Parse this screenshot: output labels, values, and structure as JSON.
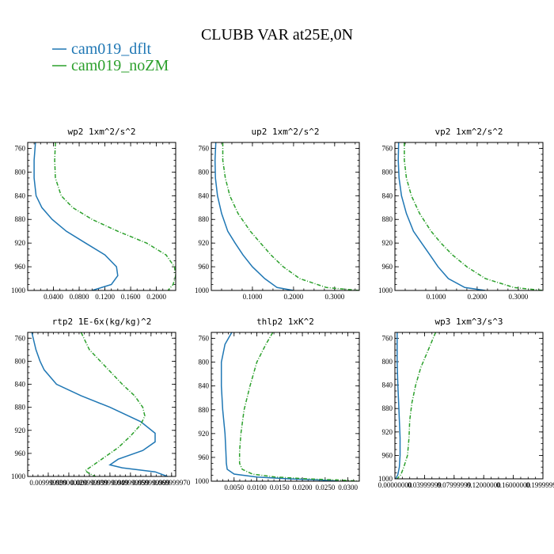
{
  "title": "CLUBB VAR at25E,0N",
  "colors": {
    "cam019_dflt": "#1f77b4",
    "cam019_noZM": "#2ca02c"
  },
  "legend": [
    {
      "name": "cam019_dflt",
      "color": "#1f77b4",
      "dash": "solid"
    },
    {
      "name": "cam019_noZM",
      "color": "#2ca02c",
      "dash": "dashdot"
    }
  ],
  "chart_data": [
    {
      "type": "line",
      "title": "wp2   1xm^2/s^2",
      "ylim": [
        1000,
        750
      ],
      "yticks": [
        760,
        800,
        840,
        880,
        920,
        960,
        1000
      ],
      "xlim": [
        0.0,
        0.23
      ],
      "xticks": [
        0.04,
        0.08,
        0.12,
        0.16,
        0.2
      ],
      "xtick_labels": [
        "0.0400",
        "0.0800",
        "0.1200",
        "0.1600",
        "0.2000"
      ],
      "series": [
        {
          "name": "cam019_dflt",
          "x": [
            0.012,
            0.01,
            0.01,
            0.013,
            0.022,
            0.038,
            0.06,
            0.09,
            0.12,
            0.138,
            0.14,
            0.13,
            0.1
          ],
          "y": [
            750,
            780,
            810,
            840,
            860,
            880,
            900,
            920,
            940,
            960,
            975,
            990,
            1000
          ]
        },
        {
          "name": "cam019_noZM",
          "x": [
            0.043,
            0.042,
            0.043,
            0.052,
            0.07,
            0.1,
            0.14,
            0.185,
            0.215,
            0.228,
            0.23,
            0.226,
            0.218
          ],
          "y": [
            750,
            780,
            810,
            840,
            860,
            880,
            900,
            920,
            940,
            960,
            975,
            990,
            1000
          ]
        }
      ]
    },
    {
      "type": "line",
      "title": "up2   1xm^2/s^2",
      "ylim": [
        1000,
        750
      ],
      "yticks": [
        760,
        800,
        840,
        880,
        920,
        960,
        1000
      ],
      "xlim": [
        0.0,
        0.36
      ],
      "xticks": [
        0.1,
        0.2,
        0.3
      ],
      "xtick_labels": [
        "0.1000",
        "0.2000",
        "0.3000"
      ],
      "series": [
        {
          "name": "cam019_dflt",
          "x": [
            0.011,
            0.009,
            0.01,
            0.015,
            0.025,
            0.04,
            0.058,
            0.077,
            0.1,
            0.13,
            0.16,
            0.2
          ],
          "y": [
            750,
            780,
            810,
            840,
            870,
            900,
            920,
            940,
            960,
            980,
            995,
            1000
          ]
        },
        {
          "name": "cam019_noZM",
          "x": [
            0.028,
            0.028,
            0.034,
            0.045,
            0.065,
            0.095,
            0.12,
            0.145,
            0.175,
            0.215,
            0.28,
            0.36
          ],
          "y": [
            750,
            780,
            810,
            840,
            870,
            900,
            920,
            940,
            960,
            980,
            995,
            1000
          ]
        }
      ]
    },
    {
      "type": "line",
      "title": "vp2   1xm^2/s^2",
      "ylim": [
        1000,
        750
      ],
      "yticks": [
        760,
        800,
        840,
        880,
        920,
        960,
        1000
      ],
      "xlim": [
        0.0,
        0.36
      ],
      "xticks": [
        0.1,
        0.2,
        0.3
      ],
      "xtick_labels": [
        "0.1000",
        "0.2000",
        "0.3000"
      ],
      "series": [
        {
          "name": "cam019_dflt",
          "x": [
            0.009,
            0.008,
            0.01,
            0.016,
            0.028,
            0.045,
            0.065,
            0.085,
            0.105,
            0.13,
            0.17,
            0.22
          ],
          "y": [
            750,
            780,
            810,
            840,
            870,
            900,
            920,
            940,
            960,
            980,
            995,
            1000
          ]
        },
        {
          "name": "cam019_noZM",
          "x": [
            0.023,
            0.023,
            0.028,
            0.04,
            0.06,
            0.088,
            0.112,
            0.14,
            0.175,
            0.22,
            0.29,
            0.36
          ],
          "y": [
            750,
            780,
            810,
            840,
            870,
            900,
            920,
            940,
            960,
            980,
            995,
            1000
          ]
        }
      ]
    },
    {
      "type": "line",
      "title": "rtp2   1E-6x(kg/kg)^2",
      "ylim": [
        1000,
        750
      ],
      "yticks": [
        760,
        800,
        840,
        880,
        920,
        960,
        1000
      ],
      "xlim": [
        0.0,
        0.072
      ],
      "xticks": [
        0.01,
        0.02,
        0.03,
        0.04,
        0.05,
        0.06,
        0.07
      ],
      "xtick_labels": [
        "0.009999999",
        "0.020000000",
        "0.029999999",
        "0.039999999",
        "0.049999999",
        "0.059999999",
        "0.069999970"
      ],
      "series": [
        {
          "name": "cam019_dflt",
          "x": [
            0.002,
            0.004,
            0.006,
            0.008,
            0.014,
            0.026,
            0.04,
            0.055,
            0.062,
            0.062,
            0.056,
            0.044,
            0.04,
            0.046,
            0.062,
            0.068
          ],
          "y": [
            750,
            780,
            800,
            815,
            840,
            860,
            880,
            905,
            925,
            940,
            955,
            970,
            980,
            985,
            992,
            1000
          ]
        },
        {
          "name": "cam019_noZM",
          "x": [
            0.026,
            0.03,
            0.038,
            0.046,
            0.052,
            0.056,
            0.057,
            0.055,
            0.05,
            0.044,
            0.036,
            0.03,
            0.028,
            0.03,
            0.033
          ],
          "y": [
            750,
            780,
            810,
            840,
            860,
            880,
            895,
            910,
            930,
            950,
            970,
            985,
            990,
            995,
            1000
          ]
        }
      ]
    },
    {
      "type": "line",
      "title": "thlp2   1xK^2",
      "ylim": [
        1000,
        750
      ],
      "yticks": [
        760,
        800,
        840,
        880,
        920,
        960,
        1000
      ],
      "xlim": [
        0.0,
        0.0325
      ],
      "xticks": [
        0.005,
        0.01,
        0.015,
        0.02,
        0.025,
        0.03
      ],
      "xtick_labels": [
        "0.0050",
        "0.0100",
        "0.0150",
        "0.0200",
        "0.0250",
        "0.0300"
      ],
      "series": [
        {
          "name": "cam019_dflt",
          "x": [
            0.0045,
            0.003,
            0.0022,
            0.0022,
            0.0025,
            0.003,
            0.0032,
            0.0033,
            0.0035,
            0.005,
            0.01,
            0.017,
            0.024,
            0.028
          ],
          "y": [
            750,
            770,
            800,
            840,
            880,
            920,
            950,
            970,
            980,
            988,
            993,
            996,
            998,
            1000
          ]
        },
        {
          "name": "cam019_noZM",
          "x": [
            0.0135,
            0.012,
            0.01,
            0.0085,
            0.0072,
            0.0065,
            0.0062,
            0.0062,
            0.0068,
            0.009,
            0.014,
            0.021,
            0.028,
            0.0325
          ],
          "y": [
            750,
            770,
            800,
            840,
            880,
            920,
            950,
            970,
            980,
            988,
            993,
            996,
            998,
            1000
          ]
        }
      ]
    },
    {
      "type": "line",
      "title": "wp3   1xm^3/s^3",
      "ylim": [
        1000,
        750
      ],
      "yticks": [
        760,
        800,
        840,
        880,
        920,
        960,
        1000
      ],
      "xlim": [
        0.0,
        0.2
      ],
      "xticks": [
        0.0,
        0.04,
        0.08,
        0.12,
        0.16,
        0.2
      ],
      "xtick_labels": [
        "0.00000000",
        "0.03999999",
        "0.07999999",
        "0.12000000",
        "0.16000000",
        "0.19999999"
      ],
      "series": [
        {
          "name": "cam019_dflt",
          "x": [
            0.003,
            0.003,
            0.004,
            0.005,
            0.006,
            0.007,
            0.007,
            0.006,
            0.004,
            0.001
          ],
          "y": [
            750,
            800,
            840,
            870,
            900,
            930,
            960,
            980,
            993,
            1000
          ]
        },
        {
          "name": "cam019_noZM",
          "x": [
            0.055,
            0.045,
            0.035,
            0.028,
            0.023,
            0.02,
            0.019,
            0.017,
            0.012,
            0.008,
            0.003
          ],
          "y": [
            750,
            780,
            810,
            840,
            870,
            900,
            930,
            960,
            980,
            993,
            1000
          ]
        }
      ]
    }
  ]
}
